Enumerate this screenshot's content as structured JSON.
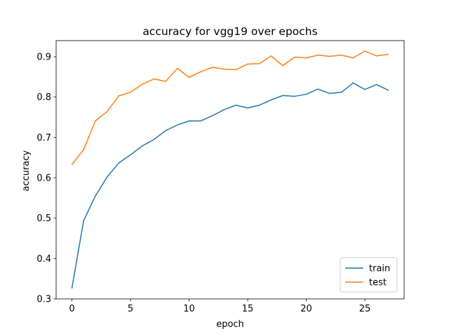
{
  "chart_data": {
    "type": "line",
    "title": "accuracy for vgg19 over epochs",
    "xlabel": "epoch",
    "ylabel": "accuracy",
    "xlim": [
      -1.35,
      28.35
    ],
    "ylim": [
      0.3,
      0.94
    ],
    "xticks": [
      0,
      5,
      10,
      15,
      20,
      25
    ],
    "xtick_labels": [
      "0",
      "5",
      "10",
      "15",
      "20",
      "25"
    ],
    "yticks": [
      0.3,
      0.4,
      0.5,
      0.6,
      0.7,
      0.8,
      0.9
    ],
    "ytick_labels": [
      "0.3",
      "0.4",
      "0.5",
      "0.6",
      "0.7",
      "0.8",
      "0.9"
    ],
    "grid": false,
    "legend_position": "lower-right",
    "x": [
      0,
      1,
      2,
      3,
      4,
      5,
      6,
      7,
      8,
      9,
      10,
      11,
      12,
      13,
      14,
      15,
      16,
      17,
      18,
      19,
      20,
      21,
      22,
      23,
      24,
      25,
      26,
      27
    ],
    "series": [
      {
        "name": "train",
        "color": "#1f77b4",
        "values": [
          0.327,
          0.494,
          0.555,
          0.602,
          0.637,
          0.657,
          0.679,
          0.695,
          0.717,
          0.731,
          0.741,
          0.741,
          0.754,
          0.769,
          0.78,
          0.773,
          0.78,
          0.793,
          0.804,
          0.802,
          0.807,
          0.82,
          0.809,
          0.812,
          0.835,
          0.819,
          0.831,
          0.817
        ]
      },
      {
        "name": "test",
        "color": "#ff7f0e",
        "values": [
          0.633,
          0.67,
          0.741,
          0.764,
          0.803,
          0.812,
          0.832,
          0.845,
          0.839,
          0.871,
          0.849,
          0.863,
          0.874,
          0.869,
          0.868,
          0.882,
          0.883,
          0.902,
          0.878,
          0.899,
          0.897,
          0.904,
          0.901,
          0.904,
          0.897,
          0.914,
          0.902,
          0.906
        ]
      }
    ]
  }
}
